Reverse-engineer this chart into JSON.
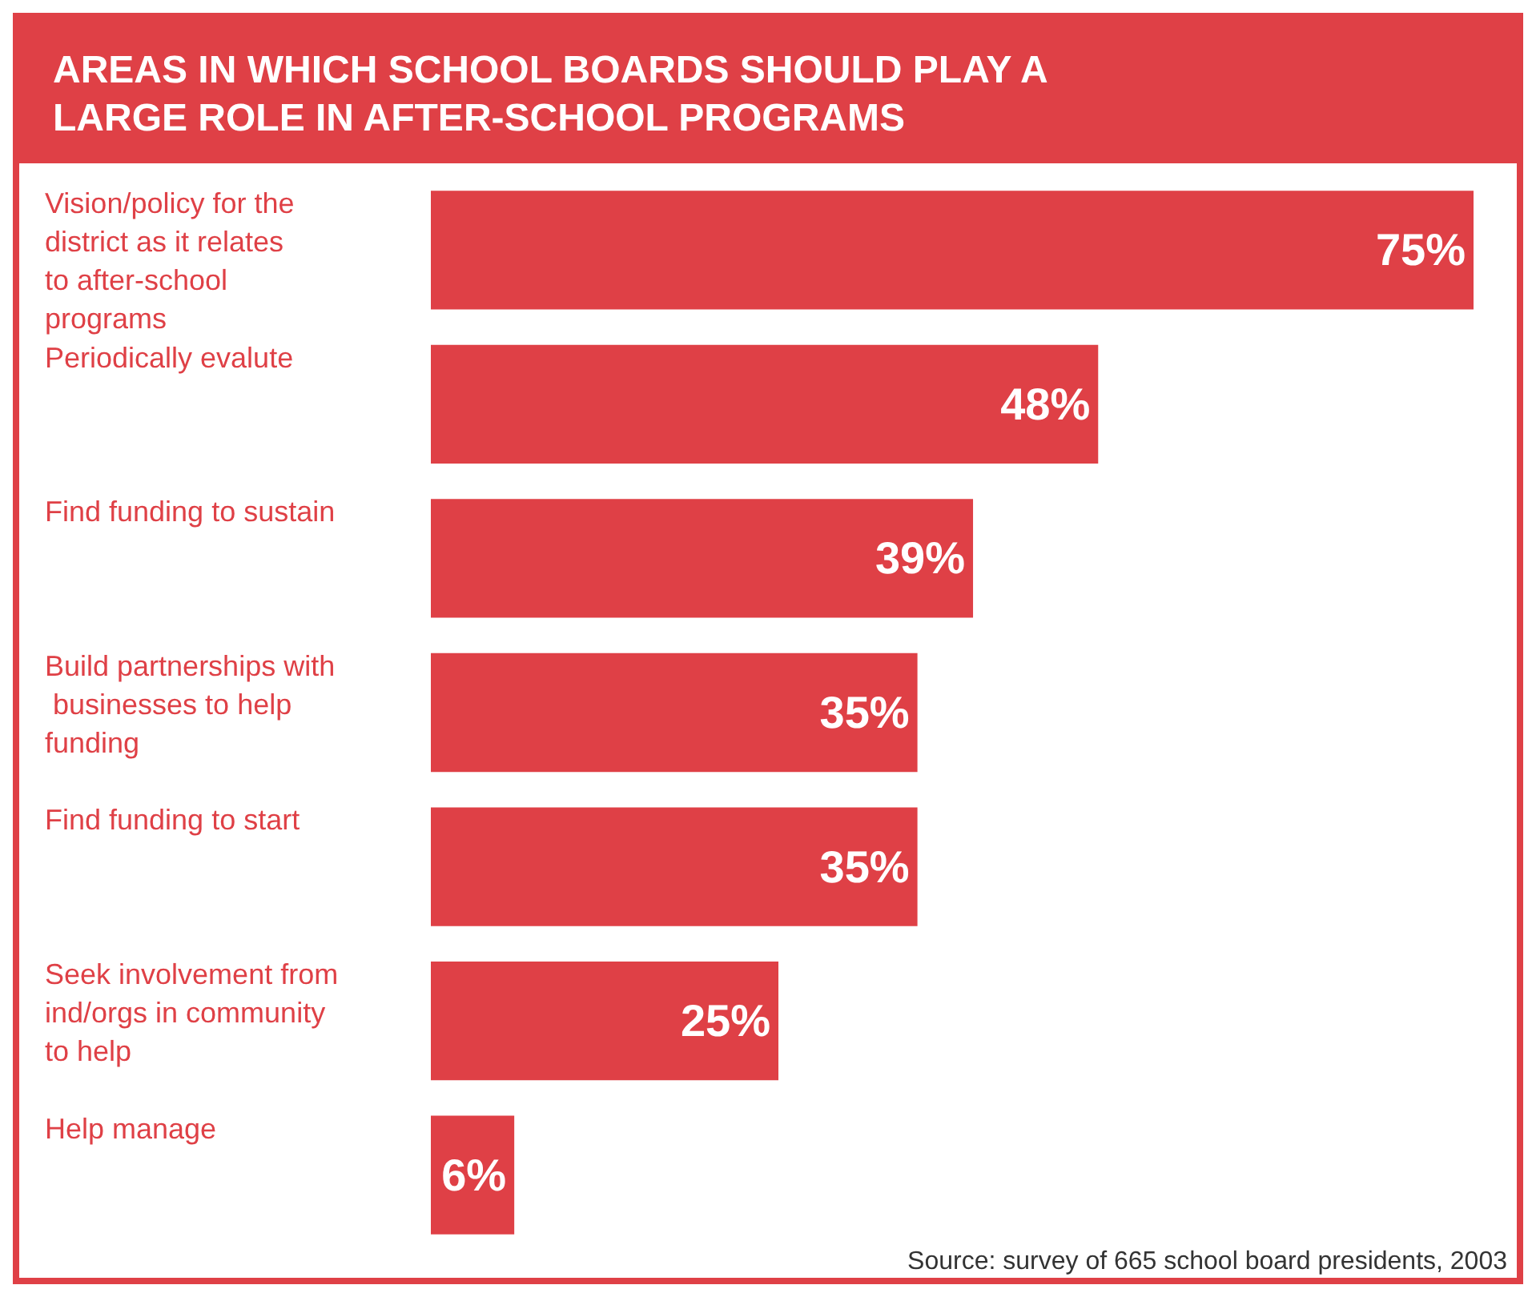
{
  "chart_data": {
    "type": "bar",
    "orientation": "horizontal",
    "title": "AREAS IN WHICH SCHOOL BOARDS SHOULD PLAY A LARGE ROLE IN AFTER-SCHOOL PROGRAMS",
    "categories": [
      "Vision/policy for the district as it relates to after-school programs",
      "Periodically evalute",
      "Find funding to sustain",
      "Build partnerships with businesses to help funding",
      "Find funding to start",
      "Seek involvement from ind/orgs in community to help",
      "Help manage"
    ],
    "values": [
      75,
      48,
      39,
      35,
      35,
      25,
      6
    ],
    "value_labels": [
      "75%",
      "48%",
      "39%",
      "35%",
      "35%",
      "25%",
      "6%"
    ],
    "color": "#df4046",
    "tick_labels": false,
    "annotations": [
      "Source: survey of 665 school board presidents, 2003"
    ]
  }
}
